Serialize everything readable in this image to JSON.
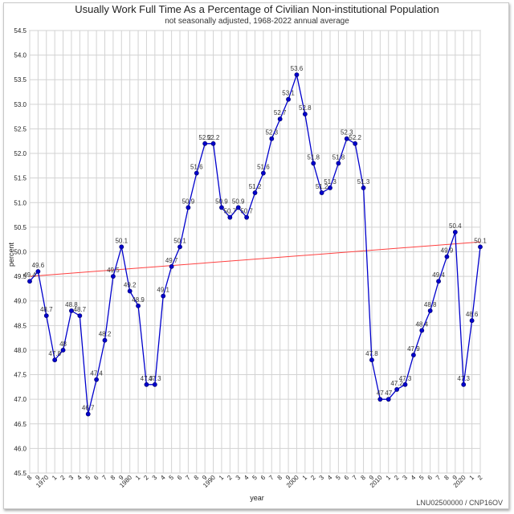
{
  "chart_data": {
    "type": "line",
    "title": "Usually Work Full Time As a Percentage of Civilian Non-institutional Population",
    "subtitle": "not seasonally adjusted, 1968-2022 annual average",
    "xlabel": "year",
    "ylabel": "percent",
    "source": "LNU02500000 / CNP16OV",
    "ylim": [
      45.5,
      54.5
    ],
    "yticks": [
      "45.5",
      "46.0",
      "46.5",
      "47.0",
      "47.5",
      "48.0",
      "48.5",
      "49.0",
      "49.5",
      "50.0",
      "50.5",
      "51.0",
      "51.5",
      "52.0",
      "52.5",
      "53.0",
      "53.5",
      "54.0",
      "54.5"
    ],
    "grid": true,
    "colors": {
      "line": "#0000cc",
      "marker": "#0000cc",
      "trend": "#ff4040",
      "grid": "#d3d3d3"
    },
    "x": [
      1968,
      1969,
      1970,
      1971,
      1972,
      1973,
      1974,
      1975,
      1976,
      1977,
      1978,
      1979,
      1980,
      1981,
      1982,
      1983,
      1984,
      1985,
      1986,
      1987,
      1988,
      1989,
      1990,
      1991,
      1992,
      1993,
      1994,
      1995,
      1996,
      1997,
      1998,
      1999,
      2000,
      2001,
      2002,
      2003,
      2004,
      2005,
      2006,
      2007,
      2008,
      2009,
      2010,
      2011,
      2012,
      2013,
      2014,
      2015,
      2016,
      2017,
      2018,
      2019,
      2020,
      2021,
      2022
    ],
    "x_tick_labels": [
      "8",
      "9",
      "1970",
      "1",
      "2",
      "3",
      "4",
      "5",
      "6",
      "7",
      "8",
      "9",
      "1980",
      "1",
      "2",
      "3",
      "4",
      "5",
      "6",
      "7",
      "8",
      "9",
      "1990",
      "1",
      "2",
      "3",
      "4",
      "5",
      "6",
      "7",
      "8",
      "9",
      "2000",
      "1",
      "2",
      "3",
      "4",
      "5",
      "6",
      "7",
      "8",
      "9",
      "2010",
      "1",
      "2",
      "3",
      "4",
      "5",
      "6",
      "7",
      "8",
      "9",
      "2020",
      "1",
      "2"
    ],
    "series": [
      {
        "values": [
          49.4,
          49.6,
          48.7,
          47.8,
          48.0,
          48.8,
          48.7,
          46.7,
          47.4,
          48.2,
          49.5,
          50.1,
          49.2,
          48.9,
          47.3,
          47.3,
          49.1,
          49.7,
          50.1,
          50.9,
          51.6,
          52.2,
          52.2,
          50.9,
          50.7,
          50.9,
          50.7,
          51.2,
          51.6,
          52.3,
          52.7,
          53.1,
          53.6,
          52.8,
          51.8,
          51.2,
          51.3,
          51.8,
          52.3,
          52.2,
          51.3,
          47.8,
          47.0,
          47.0,
          47.2,
          47.3,
          47.9,
          48.4,
          48.8,
          49.4,
          49.9,
          50.4,
          47.3,
          48.6,
          50.1
        ],
        "labels": [
          "49.4",
          "49.6",
          "48.7",
          "47.8",
          "48",
          "48.8",
          "48.7",
          "46.7",
          "47.4",
          "48.2",
          "49.5",
          "50.1",
          "49.2",
          "48.9",
          "47.3",
          "47.3",
          "49.1",
          "49.7",
          "50.1",
          "50.9",
          "51.6",
          "52.2",
          "52.2",
          "50.9",
          "50.7",
          "50.9",
          "50.7",
          "51.2",
          "51.6",
          "52.3",
          "52.7",
          "53.1",
          "53.6",
          "52.8",
          "51.8",
          "51.2",
          "51.3",
          "51.8",
          "52.3",
          "52.2",
          "51.3",
          "47.8",
          "47",
          "47",
          "47.2",
          "47.3",
          "47.9",
          "48.4",
          "48.8",
          "49.4",
          "49.9",
          "50.4",
          "47.3",
          "48.6",
          "50.1"
        ]
      }
    ],
    "trendline": {
      "start": 49.5,
      "end": 50.2
    }
  }
}
